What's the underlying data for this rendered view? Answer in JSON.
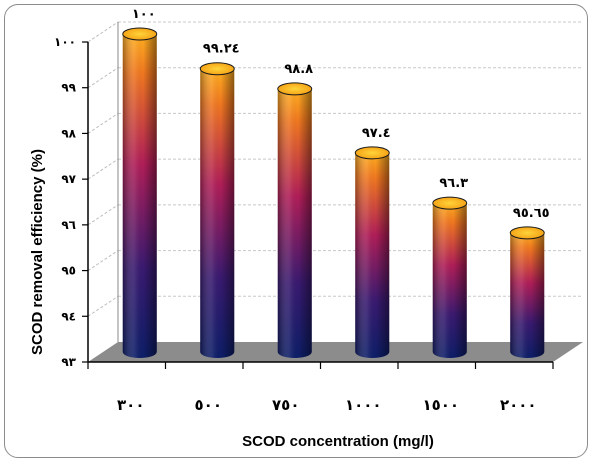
{
  "chart_data": {
    "type": "bar",
    "categories": [
      "٣٠٠",
      "٥٠٠",
      "٧٥٠",
      "١٠٠٠",
      "١٥٠٠",
      "٢٠٠٠"
    ],
    "values": [
      100,
      99.24,
      98.8,
      97.4,
      96.3,
      95.65
    ],
    "data_labels": [
      "١٠٠",
      "٩٩.٢٤",
      "٩٨.٨",
      "٩٧.٤",
      "٩٦.٣",
      "٩٥.٦٥"
    ],
    "title": "",
    "xlabel": "SCOD concentration (mg/l)",
    "ylabel": "SCOD removal efficiency (%)",
    "ylim": [
      93,
      100
    ],
    "yticks": [
      93,
      94,
      95,
      96,
      97,
      98,
      99,
      100
    ],
    "ytick_labels": [
      "٩٣",
      "٩٤",
      "٩٥",
      "٩٦",
      "٩٧",
      "٩٨",
      "٩٩",
      "١٠٠"
    ],
    "grid": true,
    "style": "3d-cylinder",
    "colors": {
      "bar_top": "#f5a623",
      "bar_upper": "#ff8c1a",
      "bar_mid": "#9c1f5e",
      "bar_bottom": "#1a1d6e",
      "floor": "#8c8c8c",
      "grid": "#c8c8c8"
    }
  }
}
